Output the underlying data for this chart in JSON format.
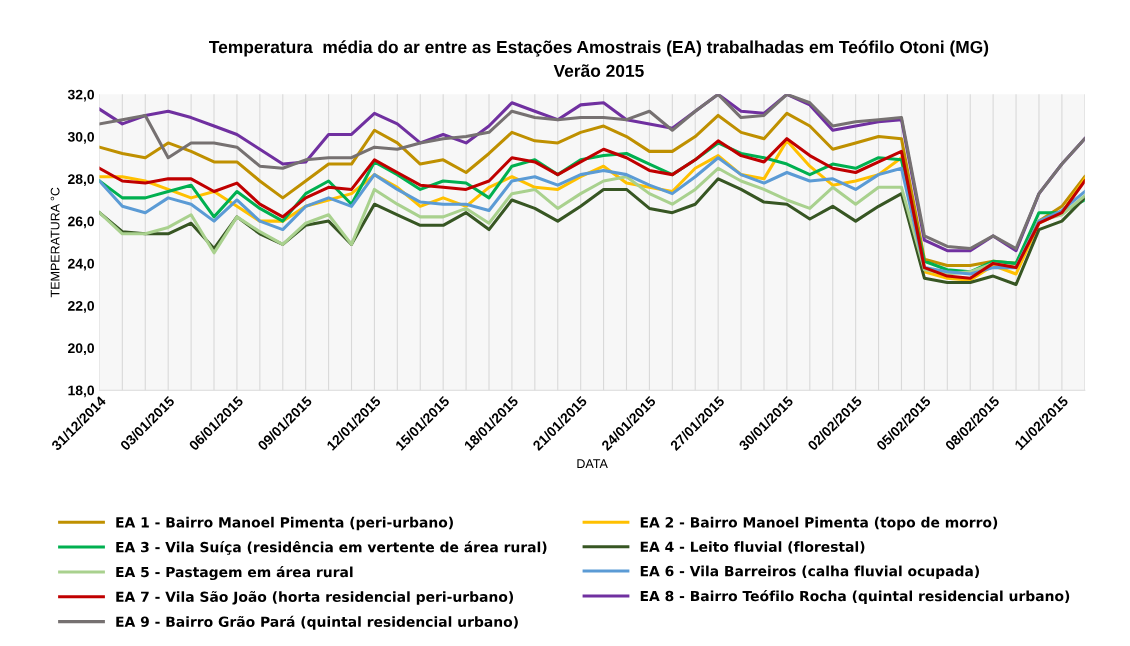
{
  "chart_data": {
    "type": "line",
    "title": "Temperatura  média do ar entre as Estações Amostrais (EA) trabalhadas em Teófilo Otoni (MG)",
    "subtitle": "Verão 2015",
    "xlabel": "DATA",
    "ylabel": "TEMPERATURA °C",
    "x": [
      "2014-12-31",
      "2015-01-01",
      "2015-01-02",
      "2015-01-03",
      "2015-01-04",
      "2015-01-05",
      "2015-01-06",
      "2015-01-07",
      "2015-01-08",
      "2015-01-09",
      "2015-01-10",
      "2015-01-11",
      "2015-01-12",
      "2015-01-13",
      "2015-01-14",
      "2015-01-15",
      "2015-01-16",
      "2015-01-17",
      "2015-01-18",
      "2015-01-19",
      "2015-01-20",
      "2015-01-21",
      "2015-01-22",
      "2015-01-23",
      "2015-01-24",
      "2015-01-25",
      "2015-01-26",
      "2015-01-27",
      "2015-01-28",
      "2015-01-29",
      "2015-01-30",
      "2015-01-31",
      "2015-02-01",
      "2015-02-02",
      "2015-02-03",
      "2015-02-04",
      "2015-02-05",
      "2015-02-06",
      "2015-02-07",
      "2015-02-08",
      "2015-02-09",
      "2015-02-10",
      "2015-02-11",
      "2015-02-12"
    ],
    "series": [
      {
        "name": "EA 1 - Bairro Manoel Pimenta (peri-urbano)",
        "color": "#bf9000",
        "values": [
          29.5,
          29.2,
          29.0,
          29.7,
          29.3,
          28.8,
          28.8,
          27.9,
          27.1,
          27.9,
          28.7,
          28.7,
          30.3,
          29.7,
          28.7,
          28.9,
          28.3,
          29.2,
          30.2,
          29.8,
          29.7,
          30.2,
          30.5,
          30.0,
          29.3,
          29.3,
          30.0,
          31.0,
          30.2,
          29.9,
          31.1,
          30.5,
          29.4,
          29.7,
          30.0,
          29.9,
          24.2,
          23.9,
          23.9,
          24.1,
          24.0,
          26.0,
          26.7,
          28.1
        ]
      },
      {
        "name": "EA 2 - Bairro Manoel Pimenta (topo de morro)",
        "color": "#ffc000",
        "values": [
          28.1,
          28.1,
          27.9,
          27.5,
          27.1,
          27.4,
          26.7,
          26.0,
          26.0,
          26.7,
          27.0,
          27.3,
          28.2,
          27.6,
          26.7,
          27.1,
          26.7,
          27.6,
          28.1,
          27.6,
          27.5,
          28.1,
          28.6,
          27.8,
          27.6,
          27.4,
          28.5,
          29.1,
          28.2,
          28.0,
          29.8,
          28.6,
          27.7,
          27.9,
          28.2,
          29.0,
          23.6,
          23.3,
          23.2,
          23.9,
          23.5,
          25.9,
          26.4,
          28.0
        ]
      },
      {
        "name": "EA 3 - Vila Suíça (residência em vertente de área rural)",
        "color": "#00b050",
        "values": [
          27.9,
          27.1,
          27.1,
          27.4,
          27.7,
          26.2,
          27.4,
          26.6,
          26.0,
          27.3,
          27.9,
          26.8,
          28.8,
          28.2,
          27.5,
          27.9,
          27.8,
          27.1,
          28.6,
          28.9,
          28.2,
          28.9,
          29.1,
          29.2,
          28.7,
          28.2,
          28.9,
          29.7,
          29.2,
          29.0,
          28.7,
          28.2,
          28.7,
          28.5,
          29.0,
          28.9,
          24.1,
          23.7,
          23.6,
          24.1,
          24.0,
          26.4,
          26.4,
          27.0
        ]
      },
      {
        "name": "EA 4 - Leito fluvial (florestal)",
        "color": "#375623",
        "values": [
          26.4,
          25.5,
          25.4,
          25.4,
          25.9,
          24.7,
          26.2,
          25.4,
          24.9,
          25.8,
          26.0,
          24.9,
          26.8,
          26.3,
          25.8,
          25.8,
          26.4,
          25.6,
          27.0,
          26.6,
          26.0,
          26.7,
          27.5,
          27.5,
          26.6,
          26.4,
          26.8,
          28.0,
          27.5,
          26.9,
          26.8,
          26.1,
          26.7,
          26.0,
          26.7,
          27.3,
          23.3,
          23.1,
          23.1,
          23.4,
          23.0,
          25.6,
          26.0,
          27.1
        ]
      },
      {
        "name": "EA 5 - Pastagem em área rural",
        "color": "#a9d18e",
        "values": [
          26.4,
          25.4,
          25.4,
          25.7,
          26.3,
          24.5,
          26.2,
          25.5,
          24.9,
          25.9,
          26.3,
          24.9,
          27.5,
          26.8,
          26.2,
          26.2,
          26.6,
          25.9,
          27.3,
          27.5,
          26.6,
          27.3,
          27.9,
          28.1,
          27.3,
          26.8,
          27.5,
          28.5,
          27.9,
          27.5,
          27.0,
          26.6,
          27.6,
          26.8,
          27.6,
          27.6,
          23.7,
          23.5,
          23.6,
          24.0,
          23.8,
          26.0,
          26.3,
          27.2
        ]
      },
      {
        "name": "EA 6 - Vila Barreiros (calha fluvial ocupada)",
        "color": "#5b9bd5",
        "values": [
          27.9,
          26.7,
          26.4,
          27.1,
          26.8,
          26.0,
          27.0,
          26.0,
          25.6,
          26.7,
          27.1,
          26.7,
          28.2,
          27.5,
          26.9,
          26.8,
          26.8,
          26.5,
          27.9,
          28.1,
          27.7,
          28.2,
          28.4,
          28.2,
          27.7,
          27.3,
          28.1,
          29.0,
          28.2,
          27.8,
          28.3,
          27.9,
          28.0,
          27.5,
          28.2,
          28.5,
          23.8,
          23.6,
          23.5,
          23.8,
          23.8,
          26.0,
          26.5,
          27.4
        ]
      },
      {
        "name": "EA 7 - Vila São João (horta residencial peri-urbano)",
        "color": "#c00000",
        "values": [
          28.5,
          27.9,
          27.8,
          28.0,
          28.0,
          27.4,
          27.8,
          26.8,
          26.2,
          27.1,
          27.6,
          27.5,
          28.9,
          28.3,
          27.7,
          27.6,
          27.5,
          27.9,
          29.0,
          28.8,
          28.2,
          28.8,
          29.4,
          29.0,
          28.4,
          28.2,
          28.9,
          29.8,
          29.1,
          28.8,
          29.9,
          29.1,
          28.5,
          28.3,
          28.8,
          29.3,
          23.8,
          23.4,
          23.3,
          24.0,
          23.8,
          25.9,
          26.4,
          27.9
        ]
      },
      {
        "name": "EA 8 - Bairro Teófilo Rocha (quintal residencial urbano)",
        "color": "#7030a0",
        "values": [
          31.3,
          30.6,
          31.0,
          31.2,
          30.9,
          30.5,
          30.1,
          29.4,
          28.7,
          28.8,
          30.1,
          30.1,
          31.1,
          30.6,
          29.7,
          30.1,
          29.7,
          30.5,
          31.6,
          31.2,
          30.8,
          31.5,
          31.6,
          30.8,
          30.6,
          30.4,
          31.2,
          32.0,
          31.2,
          31.1,
          32.0,
          31.5,
          30.3,
          30.5,
          30.7,
          30.8,
          25.1,
          24.6,
          24.6,
          25.3,
          24.6,
          27.3,
          28.7,
          29.9
        ]
      },
      {
        "name": "EA 9 - Bairro Grão Pará (quintal residencial urbano)",
        "color": "#767171",
        "values": [
          30.6,
          30.8,
          31.0,
          29.0,
          29.7,
          29.7,
          29.5,
          28.6,
          28.5,
          28.9,
          29.0,
          29.0,
          29.5,
          29.4,
          29.7,
          29.9,
          30.0,
          30.2,
          31.2,
          30.9,
          30.8,
          30.9,
          30.9,
          30.8,
          31.2,
          30.3,
          31.2,
          32.0,
          30.9,
          31.0,
          32.0,
          31.6,
          30.5,
          30.7,
          30.8,
          30.9,
          25.3,
          24.8,
          24.7,
          25.3,
          24.7,
          27.3,
          28.7,
          29.9
        ]
      }
    ],
    "xlim": [
      "2014-12-31",
      "2015-02-12"
    ],
    "xticks": [
      {
        "value": "2014-12-31",
        "label": "31/12/2014"
      },
      {
        "value": "2015-01-03",
        "label": "03/01/2015"
      },
      {
        "value": "2015-01-06",
        "label": "06/01/2015"
      },
      {
        "value": "2015-01-09",
        "label": "09/01/2015"
      },
      {
        "value": "2015-01-12",
        "label": "12/01/2015"
      },
      {
        "value": "2015-01-15",
        "label": "15/01/2015"
      },
      {
        "value": "2015-01-18",
        "label": "18/01/2015"
      },
      {
        "value": "2015-01-21",
        "label": "21/01/2015"
      },
      {
        "value": "2015-01-24",
        "label": "24/01/2015"
      },
      {
        "value": "2015-01-27",
        "label": "27/01/2015"
      },
      {
        "value": "2015-01-30",
        "label": "30/01/2015"
      },
      {
        "value": "2015-02-02",
        "label": "02/02/2015"
      },
      {
        "value": "2015-02-05",
        "label": "05/02/2015"
      },
      {
        "value": "2015-02-08",
        "label": "08/02/2015"
      },
      {
        "value": "2015-02-11",
        "label": "11/02/2015"
      }
    ],
    "ylim": [
      18,
      32
    ],
    "yticks": [
      {
        "value": 18,
        "label": "18,0"
      },
      {
        "value": 20,
        "label": "20,0"
      },
      {
        "value": 22,
        "label": "22,0"
      },
      {
        "value": 24,
        "label": "24,0"
      },
      {
        "value": 26,
        "label": "26,0"
      },
      {
        "value": 28,
        "label": "28,0"
      },
      {
        "value": 30,
        "label": "30,0"
      },
      {
        "value": 32,
        "label": "32,0"
      }
    ],
    "grid": "x",
    "legend": "bottom",
    "marker": "none",
    "line_style": "solid"
  }
}
